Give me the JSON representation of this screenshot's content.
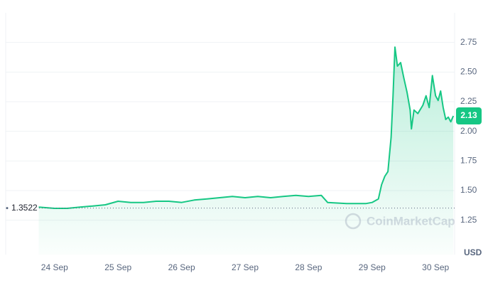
{
  "chart_data": {
    "type": "line",
    "x": [
      23.75,
      24.0,
      24.2,
      24.4,
      24.6,
      24.8,
      25.0,
      25.2,
      25.4,
      25.6,
      25.8,
      26.0,
      26.2,
      26.4,
      26.6,
      26.8,
      27.0,
      27.2,
      27.4,
      27.6,
      27.8,
      28.0,
      28.2,
      28.3,
      28.6,
      28.9,
      29.0,
      29.1,
      29.15,
      29.2,
      29.25,
      29.3,
      29.33,
      29.36,
      29.4,
      29.45,
      29.5,
      29.55,
      29.6,
      29.62,
      29.66,
      29.72,
      29.8,
      29.85,
      29.9,
      29.95,
      30.0,
      30.04,
      30.08,
      30.12,
      30.16,
      30.2,
      30.24,
      30.28
    ],
    "series": [
      {
        "color": "#16c784",
        "values": [
          1.36,
          1.35,
          1.35,
          1.36,
          1.37,
          1.38,
          1.41,
          1.4,
          1.4,
          1.41,
          1.41,
          1.4,
          1.42,
          1.43,
          1.44,
          1.45,
          1.44,
          1.45,
          1.44,
          1.45,
          1.46,
          1.45,
          1.46,
          1.4,
          1.39,
          1.39,
          1.4,
          1.43,
          1.55,
          1.62,
          1.66,
          1.95,
          2.3,
          2.71,
          2.55,
          2.58,
          2.45,
          2.33,
          2.18,
          2.02,
          2.18,
          2.15,
          2.22,
          2.3,
          2.2,
          2.47,
          2.3,
          2.26,
          2.34,
          2.2,
          2.1,
          2.12,
          2.08,
          2.13
        ]
      }
    ],
    "xlim": [
      23.23,
      30.3
    ],
    "xticks": [
      {
        "value": 24,
        "label": "24 Sep"
      },
      {
        "value": 25,
        "label": "25 Sep"
      },
      {
        "value": 26,
        "label": "26 Sep"
      },
      {
        "value": 27,
        "label": "27 Sep"
      },
      {
        "value": 28,
        "label": "28 Sep"
      },
      {
        "value": 29,
        "label": "29 Sep"
      },
      {
        "value": 30,
        "label": "30 Sep"
      }
    ],
    "ylim": [
      0.96,
      3.0
    ],
    "yticks": [
      1.25,
      {
        "value": 1.5,
        "label": "1.50"
      },
      1.75,
      {
        "value": 2,
        "label": "2.00"
      },
      2.25,
      {
        "value": 2.5,
        "label": "2.50"
      },
      2.75
    ],
    "grid": true,
    "reference_price": 1.3522,
    "current_price": 2.13,
    "currency": "USD",
    "watermark": "CoinMarketCap"
  }
}
